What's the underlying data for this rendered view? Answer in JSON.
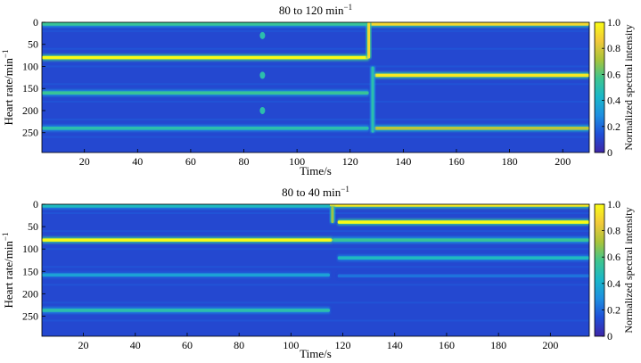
{
  "colormap": [
    "#3e26a8",
    "#1f4fd8",
    "#1e8fe0",
    "#19b7c9",
    "#3ec58f",
    "#a9c43a",
    "#f2c93a",
    "#f9fb15"
  ],
  "chart_data": [
    {
      "type": "heatmap",
      "title": "80 to 120 min",
      "title_superscript": "−1",
      "xlabel": "Time/s",
      "ylabel": "Heart rate/min",
      "ylabel_superscript": "−1",
      "colorbar_label": "Normalized spectral intensity",
      "xlim": [
        4,
        210
      ],
      "ylim": [
        0,
        295
      ],
      "xticks": [
        20,
        40,
        60,
        80,
        100,
        120,
        140,
        160,
        180,
        200
      ],
      "yticks": [
        0,
        50,
        100,
        150,
        200,
        250
      ],
      "colorbar_ticks": [
        "0",
        "0.2",
        "0.4",
        "0.6",
        "0.8",
        "1.0"
      ],
      "background_intensity": 0.12,
      "bands": [
        {
          "t0": 4,
          "t1": 127,
          "hr": 4,
          "intensity": 0.55
        },
        {
          "t0": 4,
          "t1": 127,
          "hr": 80,
          "intensity": 1.0
        },
        {
          "t0": 4,
          "t1": 127,
          "hr": 160,
          "intensity": 0.55
        },
        {
          "t0": 4,
          "t1": 127,
          "hr": 240,
          "intensity": 0.5
        },
        {
          "t0": 127,
          "t1": 210,
          "hr": 4,
          "intensity": 0.9
        },
        {
          "t0": 129,
          "t1": 210,
          "hr": 120,
          "intensity": 0.95
        },
        {
          "t0": 129,
          "t1": 210,
          "hr": 240,
          "intensity": 0.75
        }
      ],
      "transitions": [
        {
          "t": 127,
          "hr0": 0,
          "hr1": 82,
          "intensity": 0.9
        },
        {
          "t": 128.5,
          "hr0": 100,
          "hr1": 250,
          "intensity": 0.5
        }
      ],
      "spots": [
        {
          "t": 87,
          "hr": 30
        },
        {
          "t": 87,
          "hr": 120
        },
        {
          "t": 87,
          "hr": 200
        }
      ]
    },
    {
      "type": "heatmap",
      "title": "80 to 40 min",
      "title_superscript": "−1",
      "xlabel": "Time/s",
      "ylabel": "Heart rate/min",
      "ylabel_superscript": "−1",
      "colorbar_label": "Normalized spectral intensity",
      "xlim": [
        4,
        215
      ],
      "ylim": [
        0,
        295
      ],
      "xticks": [
        20,
        40,
        60,
        80,
        100,
        120,
        140,
        160,
        180,
        200
      ],
      "yticks": [
        0,
        50,
        100,
        150,
        200,
        250
      ],
      "colorbar_ticks": [
        "0",
        "0.2",
        "0.4",
        "0.6",
        "0.8",
        "1.0"
      ],
      "background_intensity": 0.12,
      "bands": [
        {
          "t0": 4,
          "t1": 115,
          "hr": 4,
          "intensity": 0.45
        },
        {
          "t0": 4,
          "t1": 116,
          "hr": 80,
          "intensity": 1.0
        },
        {
          "t0": 4,
          "t1": 115,
          "hr": 158,
          "intensity": 0.35
        },
        {
          "t0": 4,
          "t1": 115,
          "hr": 237,
          "intensity": 0.5
        },
        {
          "t0": 115,
          "t1": 215,
          "hr": 2,
          "intensity": 0.95
        },
        {
          "t0": 118,
          "t1": 215,
          "hr": 40,
          "intensity": 1.0
        },
        {
          "t0": 116,
          "t1": 215,
          "hr": 80,
          "intensity": 0.55
        },
        {
          "t0": 118,
          "t1": 215,
          "hr": 120,
          "intensity": 0.45
        },
        {
          "t0": 118,
          "t1": 215,
          "hr": 160,
          "intensity": 0.22
        }
      ],
      "transitions": [
        {
          "t": 116,
          "hr0": 5,
          "hr1": 42,
          "intensity": 0.7
        }
      ],
      "spots": []
    }
  ]
}
